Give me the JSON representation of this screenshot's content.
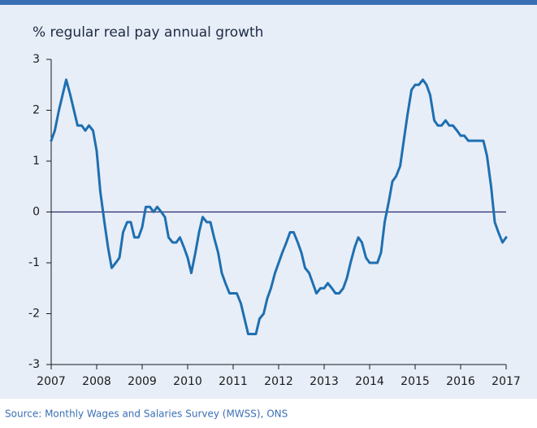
{
  "chart_data": {
    "type": "line",
    "title": "% regular real pay annual growth",
    "source": "Source: Monthly Wages and Salaries Survey (MWSS), ONS",
    "xlim": [
      2007,
      2017
    ],
    "xticks": [
      2007,
      2008,
      2009,
      2010,
      2011,
      2012,
      2013,
      2014,
      2015,
      2016,
      2017
    ],
    "ylim": [
      -3,
      3
    ],
    "yticks": [
      -3,
      -2,
      -1,
      0,
      1,
      2,
      3
    ],
    "x": [
      2007,
      2007.08,
      2007.17,
      2007.25,
      2007.33,
      2007.42,
      2007.5,
      2007.58,
      2007.67,
      2007.75,
      2007.83,
      2007.92,
      2008,
      2008.08,
      2008.17,
      2008.25,
      2008.33,
      2008.42,
      2008.5,
      2008.58,
      2008.67,
      2008.75,
      2008.83,
      2008.92,
      2009,
      2009.08,
      2009.17,
      2009.25,
      2009.33,
      2009.42,
      2009.5,
      2009.58,
      2009.67,
      2009.75,
      2009.83,
      2009.92,
      2010,
      2010.08,
      2010.17,
      2010.25,
      2010.33,
      2010.42,
      2010.5,
      2010.58,
      2010.67,
      2010.75,
      2010.83,
      2010.92,
      2011,
      2011.08,
      2011.17,
      2011.25,
      2011.33,
      2011.42,
      2011.5,
      2011.58,
      2011.67,
      2011.75,
      2011.83,
      2011.92,
      2012,
      2012.08,
      2012.17,
      2012.25,
      2012.33,
      2012.42,
      2012.5,
      2012.58,
      2012.67,
      2012.75,
      2012.83,
      2012.92,
      2013,
      2013.08,
      2013.17,
      2013.25,
      2013.33,
      2013.42,
      2013.5,
      2013.58,
      2013.67,
      2013.75,
      2013.83,
      2013.92,
      2014,
      2014.08,
      2014.17,
      2014.25,
      2014.33,
      2014.42,
      2014.5,
      2014.58,
      2014.67,
      2014.75,
      2014.83,
      2014.92,
      2015,
      2015.08,
      2015.17,
      2015.25,
      2015.33,
      2015.42,
      2015.5,
      2015.58,
      2015.67,
      2015.75,
      2015.83,
      2015.92,
      2016,
      2016.08,
      2016.17,
      2016.25,
      2016.33,
      2016.42,
      2016.5,
      2016.58,
      2016.67,
      2016.75,
      2016.83,
      2016.92,
      2017
    ],
    "series": [
      {
        "color": "#1f6fb0",
        "values": [
          1.4,
          1.6,
          2.0,
          2.3,
          2.6,
          2.3,
          2.0,
          1.7,
          1.7,
          1.6,
          1.7,
          1.6,
          1.2,
          0.4,
          -0.2,
          -0.7,
          -1.1,
          -1.0,
          -0.9,
          -0.4,
          -0.2,
          -0.2,
          -0.5,
          -0.5,
          -0.3,
          0.1,
          0.1,
          0.0,
          0.1,
          0.0,
          -0.1,
          -0.5,
          -0.6,
          -0.6,
          -0.5,
          -0.7,
          -0.9,
          -1.2,
          -0.8,
          -0.4,
          -0.1,
          -0.2,
          -0.2,
          -0.5,
          -0.8,
          -1.2,
          -1.4,
          -1.6,
          -1.6,
          -1.6,
          -1.8,
          -2.1,
          -2.4,
          -2.4,
          -2.4,
          -2.1,
          -2.0,
          -1.7,
          -1.5,
          -1.2,
          -1.0,
          -0.8,
          -0.6,
          -0.4,
          -0.4,
          -0.6,
          -0.8,
          -1.1,
          -1.2,
          -1.4,
          -1.6,
          -1.5,
          -1.5,
          -1.4,
          -1.5,
          -1.6,
          -1.6,
          -1.5,
          -1.3,
          -1.0,
          -0.7,
          -0.5,
          -0.6,
          -0.9,
          -1.0,
          -1.0,
          -1.0,
          -0.8,
          -0.2,
          0.2,
          0.6,
          0.7,
          0.9,
          1.4,
          1.9,
          2.4,
          2.5,
          2.5,
          2.6,
          2.5,
          2.3,
          1.8,
          1.7,
          1.7,
          1.8,
          1.7,
          1.7,
          1.6,
          1.5,
          1.5,
          1.4,
          1.4,
          1.4,
          1.4,
          1.4,
          1.1,
          0.5,
          -0.2,
          -0.4,
          -0.6,
          -0.5
        ]
      }
    ],
    "zero_line_color": "#28286a"
  }
}
